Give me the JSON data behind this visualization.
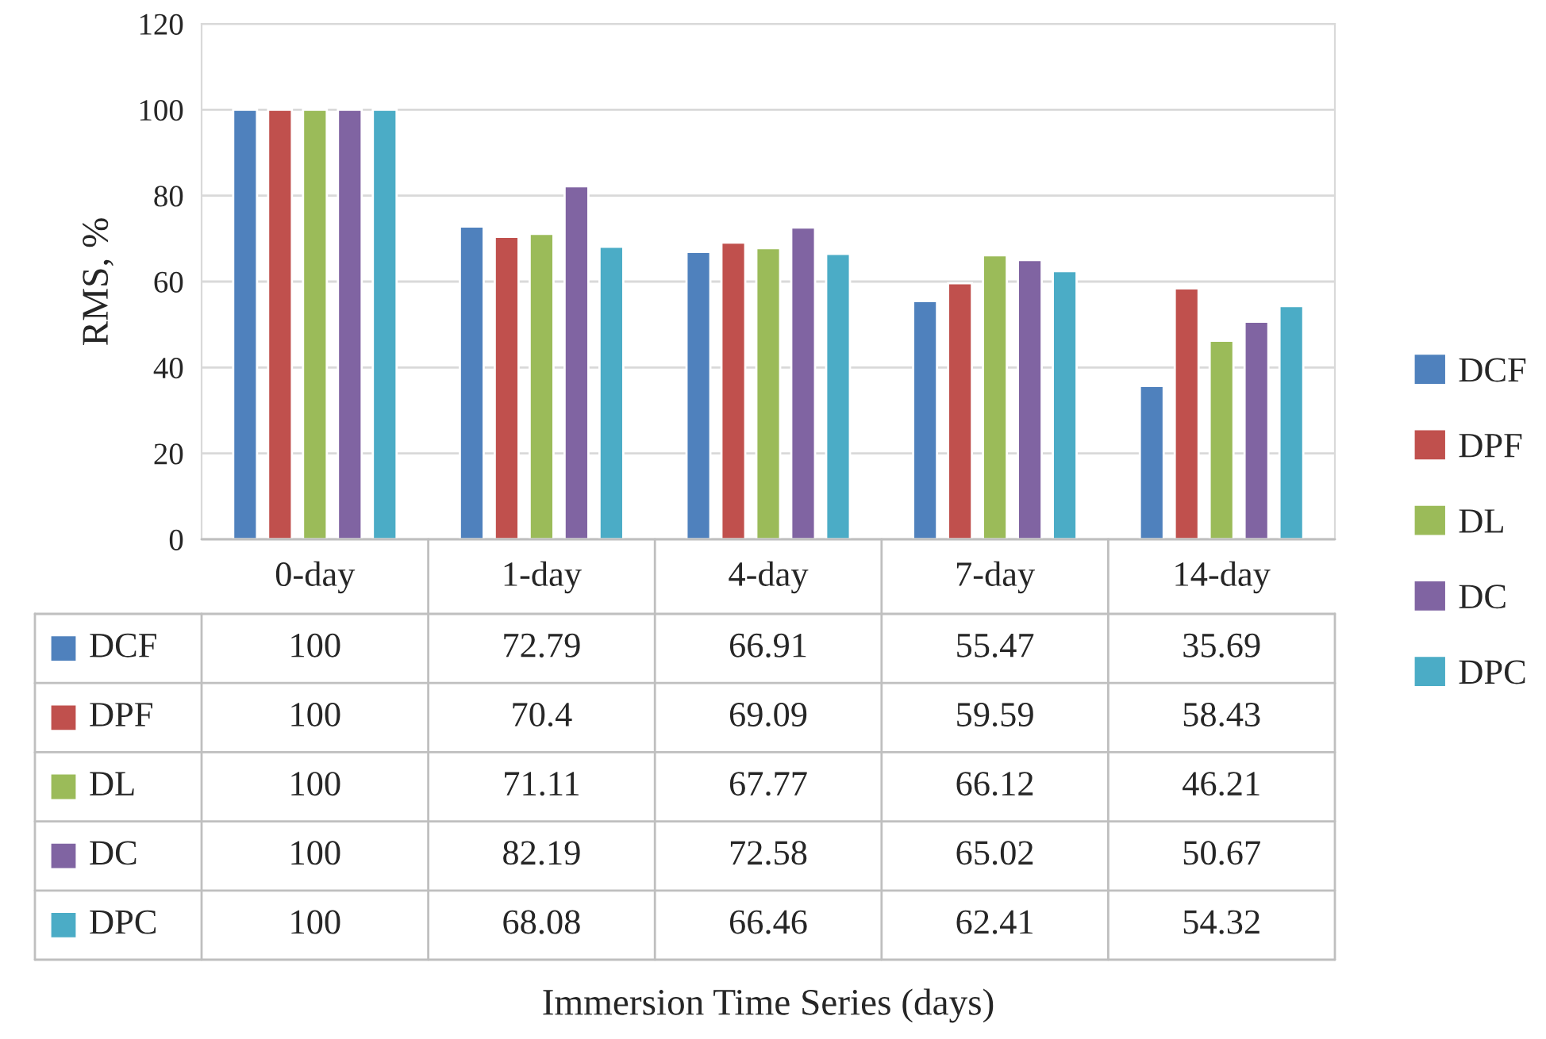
{
  "chart_data": {
    "type": "bar",
    "ylabel": "RMS, %",
    "annotations": [
      "Immersion Time Series (days)"
    ],
    "categories": [
      "0-day",
      "1-day",
      "4-day",
      "7-day",
      "14-day"
    ],
    "series": [
      {
        "name": "DCF",
        "color": "#4f81bd",
        "values": [
          100,
          72.79,
          66.91,
          55.47,
          35.69
        ]
      },
      {
        "name": "DPF",
        "color": "#c0504d",
        "values": [
          100,
          70.4,
          69.09,
          59.59,
          58.43
        ]
      },
      {
        "name": "DL",
        "color": "#9bbb59",
        "values": [
          100,
          71.11,
          67.77,
          66.12,
          46.21
        ]
      },
      {
        "name": "DC",
        "color": "#8064a2",
        "values": [
          100,
          82.19,
          72.58,
          65.02,
          50.67
        ]
      },
      {
        "name": "DPC",
        "color": "#4bacc6",
        "values": [
          100,
          68.08,
          66.46,
          62.41,
          54.32
        ]
      }
    ],
    "ylim": [
      0,
      120
    ],
    "yticks": [
      0,
      20,
      40,
      60,
      80,
      100,
      120
    ],
    "grid": "y",
    "legend": "right",
    "data_labels": true
  }
}
